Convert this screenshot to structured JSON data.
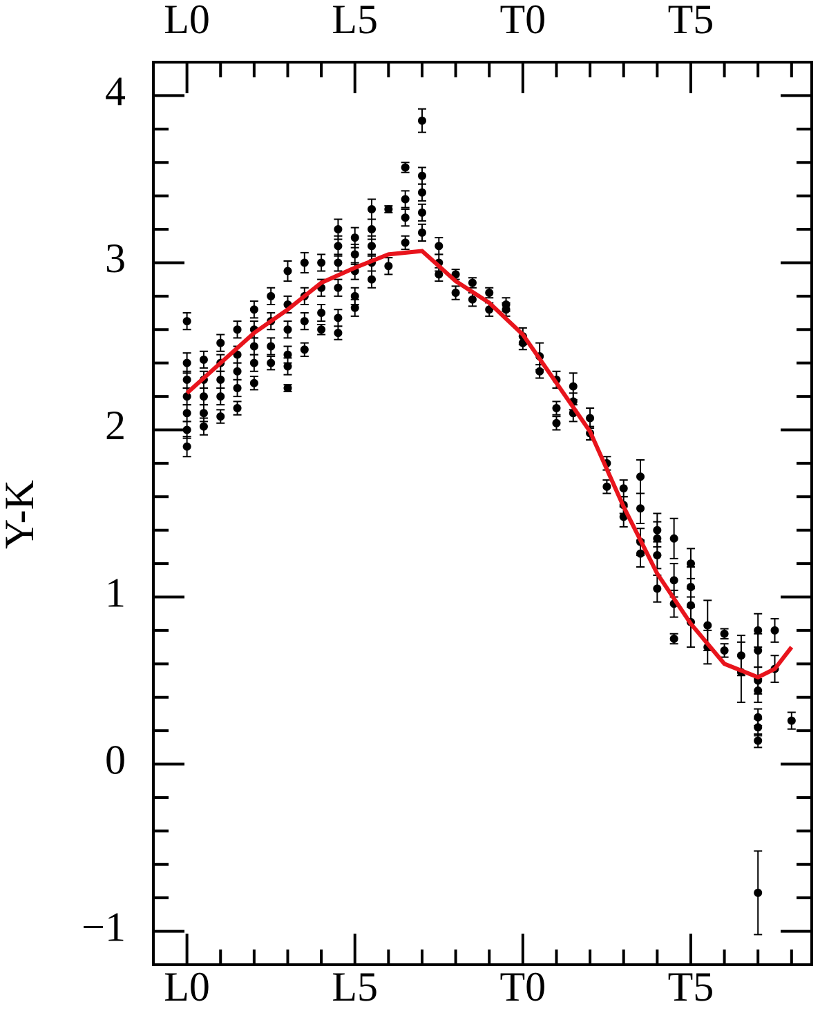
{
  "chart_data": {
    "type": "scatter",
    "y_label": "Y-K",
    "xlim": [
      -1,
      18.6
    ],
    "ylim": [
      -1.2,
      4.2
    ],
    "xticks": [
      {
        "value": 0,
        "label": "L0"
      },
      {
        "value": 5,
        "label": "L5"
      },
      {
        "value": 10,
        "label": "T0"
      },
      {
        "value": 15,
        "label": "T5"
      }
    ],
    "xminorticks": [
      -1,
      1,
      2,
      3,
      4,
      6,
      7,
      8,
      9,
      11,
      12,
      13,
      14,
      16,
      17,
      18
    ],
    "yticks": [
      {
        "value": -1,
        "label": "−1"
      },
      0,
      1,
      2,
      3,
      4
    ],
    "yminorticks": [
      -0.8,
      -0.6,
      -0.4,
      -0.2,
      0.2,
      0.4,
      0.6,
      0.8,
      1.2,
      1.4,
      1.6,
      1.8,
      2.2,
      2.4,
      2.6,
      2.8,
      3.2,
      3.4,
      3.6,
      3.8
    ],
    "color": "#000000",
    "x": [
      0,
      0,
      0,
      0,
      0,
      0,
      0,
      0.5,
      0.5,
      0.5,
      0.5,
      0.5,
      1,
      1,
      1,
      1,
      1,
      1.5,
      1.5,
      1.5,
      1.5,
      1.5,
      2,
      2,
      2,
      2,
      2,
      2.5,
      2.5,
      2.5,
      2.5,
      3,
      3,
      3,
      3,
      3,
      3,
      3.5,
      3.5,
      3.5,
      3.5,
      4,
      4,
      4,
      4,
      4.5,
      4.5,
      4.5,
      4.5,
      4.5,
      4.5,
      5,
      5,
      5,
      5,
      5,
      5.5,
      5.5,
      5.5,
      5.5,
      5.5,
      6,
      6,
      6.5,
      6.5,
      6.5,
      6.5,
      7,
      7,
      7,
      7,
      7,
      7.5,
      7.5,
      7.5,
      8,
      8,
      8.5,
      8.5,
      9,
      9,
      9.5,
      9.5,
      10,
      10,
      10.5,
      10.5,
      11,
      11,
      11,
      11.5,
      11.5,
      11.5,
      12,
      12,
      12.5,
      12.5,
      13,
      13,
      13,
      13.5,
      13.5,
      13.5,
      13.5,
      14,
      14,
      14,
      14,
      14.5,
      14.5,
      14.5,
      14.5,
      15,
      15,
      15,
      15,
      15.5,
      15.5,
      16,
      16,
      16.5,
      16.5,
      17,
      17,
      17,
      17,
      17,
      17,
      17,
      17,
      17.5,
      17.5,
      18
    ],
    "y": [
      1.9,
      2.0,
      2.1,
      2.2,
      2.3,
      2.4,
      2.65,
      2.02,
      2.1,
      2.2,
      2.3,
      2.42,
      2.08,
      2.2,
      2.3,
      2.4,
      2.52,
      2.13,
      2.25,
      2.35,
      2.45,
      2.6,
      2.28,
      2.4,
      2.5,
      2.6,
      2.72,
      2.4,
      2.5,
      2.65,
      2.8,
      2.25,
      2.38,
      2.45,
      2.6,
      2.75,
      2.95,
      2.48,
      2.65,
      2.8,
      3.0,
      2.6,
      2.7,
      2.85,
      3.0,
      2.58,
      2.67,
      2.85,
      3.0,
      3.1,
      3.2,
      2.73,
      2.8,
      2.95,
      3.05,
      3.15,
      2.9,
      3.0,
      3.1,
      3.2,
      3.32,
      2.98,
      3.32,
      3.12,
      3.27,
      3.38,
      3.57,
      3.18,
      3.3,
      3.42,
      3.52,
      3.85,
      2.93,
      3.0,
      3.1,
      2.82,
      2.93,
      2.78,
      2.88,
      2.72,
      2.82,
      2.72,
      2.75,
      2.52,
      2.56,
      2.35,
      2.44,
      2.04,
      2.13,
      2.3,
      2.1,
      2.17,
      2.26,
      1.98,
      2.07,
      1.66,
      1.8,
      1.48,
      1.55,
      1.65,
      1.26,
      1.33,
      1.53,
      1.72,
      1.05,
      1.25,
      1.35,
      1.4,
      0.75,
      0.96,
      1.1,
      1.35,
      0.85,
      0.95,
      1.06,
      1.2,
      0.7,
      0.83,
      0.68,
      0.78,
      0.55,
      0.65,
      -0.77,
      0.14,
      0.22,
      0.28,
      0.44,
      0.5,
      0.68,
      0.8,
      0.57,
      0.8,
      0.26
    ],
    "yerr": [
      0.06,
      0.05,
      0.05,
      0.05,
      0.05,
      0.06,
      0.05,
      0.05,
      0.05,
      0.05,
      0.05,
      0.05,
      0.04,
      0.05,
      0.05,
      0.05,
      0.05,
      0.04,
      0.05,
      0.05,
      0.05,
      0.05,
      0.04,
      0.05,
      0.05,
      0.05,
      0.05,
      0.04,
      0.05,
      0.05,
      0.05,
      0.02,
      0.05,
      0.05,
      0.05,
      0.05,
      0.06,
      0.04,
      0.05,
      0.05,
      0.06,
      0.03,
      0.05,
      0.05,
      0.05,
      0.04,
      0.05,
      0.05,
      0.05,
      0.06,
      0.06,
      0.05,
      0.05,
      0.05,
      0.06,
      0.06,
      0.05,
      0.05,
      0.06,
      0.06,
      0.06,
      0.05,
      0.02,
      0.04,
      0.05,
      0.05,
      0.03,
      0.05,
      0.05,
      0.05,
      0.05,
      0.07,
      0.04,
      0.05,
      0.05,
      0.04,
      0.03,
      0.04,
      0.03,
      0.04,
      0.03,
      0.04,
      0.04,
      0.04,
      0.05,
      0.04,
      0.08,
      0.04,
      0.04,
      0.05,
      0.05,
      0.05,
      0.08,
      0.04,
      0.06,
      0.04,
      0.04,
      0.06,
      0.05,
      0.05,
      0.08,
      0.08,
      0.09,
      0.1,
      0.08,
      0.08,
      0.1,
      0.1,
      0.03,
      0.08,
      0.1,
      0.12,
      0.15,
      0.1,
      0.12,
      0.09,
      0.1,
      0.15,
      0.04,
      0.03,
      0.18,
      0.12,
      0.25,
      0.04,
      0.05,
      0.05,
      0.07,
      0.08,
      0.1,
      0.1,
      0.08,
      0.07,
      0.05
    ],
    "fit": {
      "color": "#e8141c",
      "x": [
        0,
        1,
        2,
        3,
        4,
        5,
        6,
        7,
        8,
        9,
        10,
        11,
        12,
        13,
        14,
        15,
        16,
        17,
        17.5,
        18
      ],
      "y": [
        2.22,
        2.4,
        2.58,
        2.72,
        2.88,
        2.97,
        3.05,
        3.07,
        2.89,
        2.76,
        2.57,
        2.28,
        1.99,
        1.54,
        1.14,
        0.84,
        0.6,
        0.52,
        0.57,
        0.7
      ]
    }
  }
}
